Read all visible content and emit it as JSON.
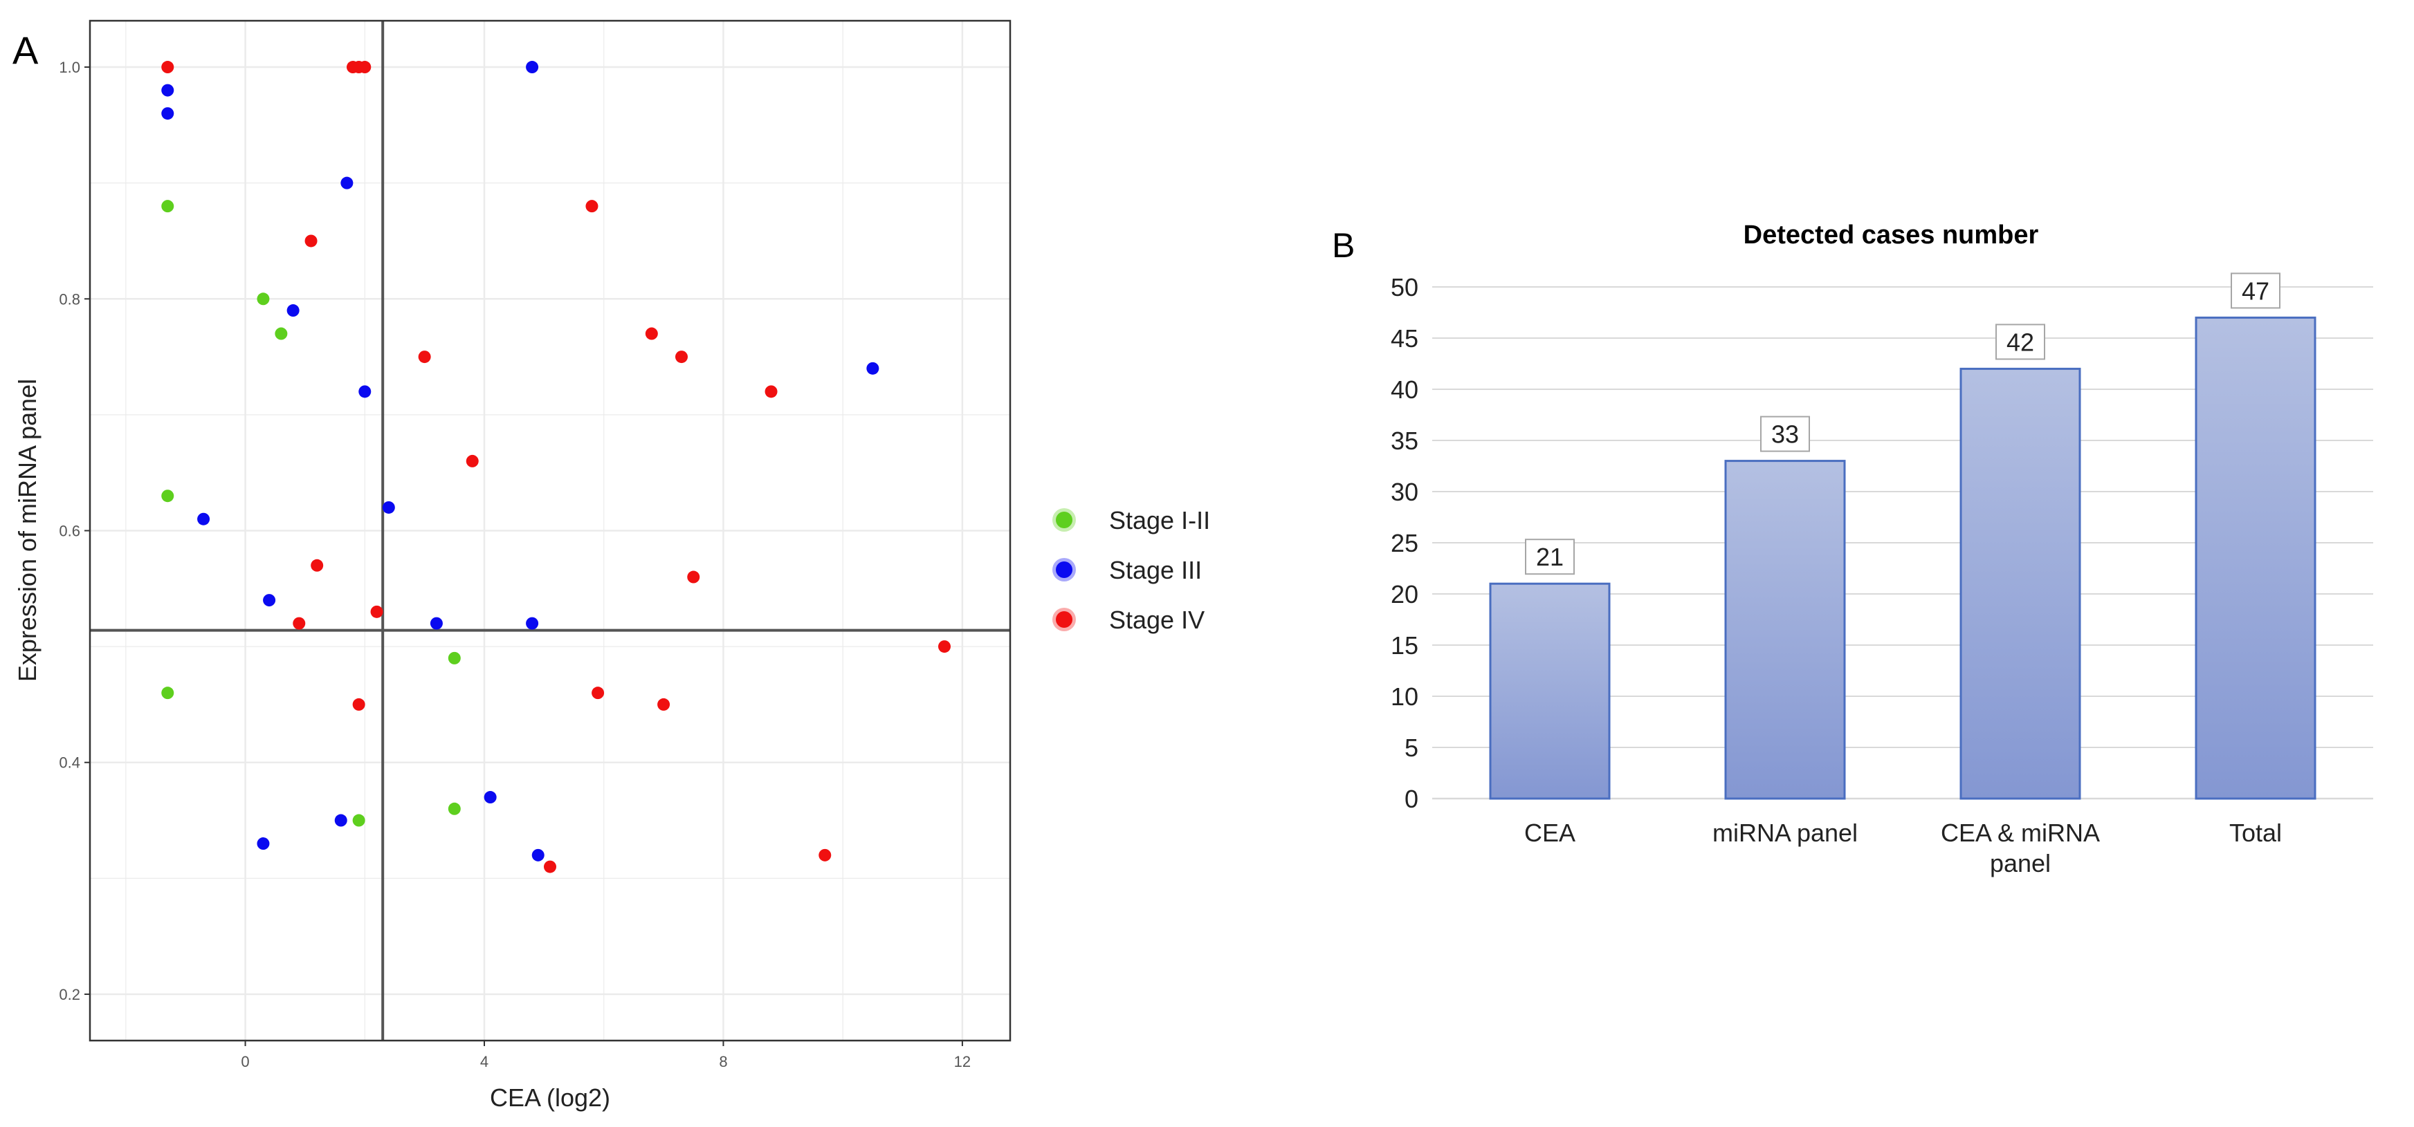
{
  "panels": {
    "a_label": "A",
    "b_label": "B"
  },
  "colors": {
    "stage_1_2": "#5ecf1e",
    "stage_3": "#0a0af0",
    "stage_4": "#f01010",
    "bar_top": "#b4c0e2",
    "bar_bottom": "#8497d2",
    "bar_border": "#4a6ec0",
    "grid": "#ebebeb",
    "bar_grid": "#d9d9d9"
  },
  "chart_data": [
    {
      "type": "scatter",
      "title": "",
      "xlabel": "CEA (log2)",
      "ylabel": "Expression of miRNA panel",
      "xlim": [
        -2.6,
        12.8
      ],
      "ylim": [
        0.16,
        1.04
      ],
      "xticks": [
        0,
        4,
        8,
        12
      ],
      "yticks": [
        0.2,
        0.4,
        0.6,
        0.8,
        1.0
      ],
      "ytick_labels": [
        "0.2",
        "0.4",
        "0.6",
        "0.8",
        "1.0"
      ],
      "grid": true,
      "cutoffs": {
        "x": 2.3,
        "y": 0.514
      },
      "legend_position": "right",
      "series": [
        {
          "name": "Stage I-II",
          "color_key": "stage_1_2",
          "points": [
            {
              "x": -1.3,
              "y": 0.88
            },
            {
              "x": 0.3,
              "y": 0.8
            },
            {
              "x": 0.6,
              "y": 0.77
            },
            {
              "x": -1.3,
              "y": 0.63
            },
            {
              "x": -1.3,
              "y": 0.46
            },
            {
              "x": 3.5,
              "y": 0.49
            },
            {
              "x": 3.5,
              "y": 0.36
            },
            {
              "x": 1.9,
              "y": 0.35
            }
          ]
        },
        {
          "name": "Stage III",
          "color_key": "stage_3",
          "points": [
            {
              "x": -1.3,
              "y": 0.98
            },
            {
              "x": -1.3,
              "y": 0.96
            },
            {
              "x": 1.7,
              "y": 0.9
            },
            {
              "x": 4.8,
              "y": 1.0
            },
            {
              "x": 0.8,
              "y": 0.79
            },
            {
              "x": 2.0,
              "y": 0.72
            },
            {
              "x": 10.5,
              "y": 0.74
            },
            {
              "x": -0.7,
              "y": 0.61
            },
            {
              "x": 2.4,
              "y": 0.62
            },
            {
              "x": 0.4,
              "y": 0.54
            },
            {
              "x": 3.2,
              "y": 0.52
            },
            {
              "x": 4.8,
              "y": 0.52
            },
            {
              "x": 4.1,
              "y": 0.37
            },
            {
              "x": 1.6,
              "y": 0.35
            },
            {
              "x": 0.3,
              "y": 0.33
            },
            {
              "x": 4.9,
              "y": 0.32
            }
          ]
        },
        {
          "name": "Stage IV",
          "color_key": "stage_4",
          "points": [
            {
              "x": -1.3,
              "y": 1.0
            },
            {
              "x": 1.8,
              "y": 1.0
            },
            {
              "x": 1.9,
              "y": 1.0
            },
            {
              "x": 2.0,
              "y": 1.0
            },
            {
              "x": 5.8,
              "y": 0.88
            },
            {
              "x": 1.1,
              "y": 0.85
            },
            {
              "x": 6.8,
              "y": 0.77
            },
            {
              "x": 7.3,
              "y": 0.75
            },
            {
              "x": 3.0,
              "y": 0.75
            },
            {
              "x": 8.8,
              "y": 0.72
            },
            {
              "x": 3.8,
              "y": 0.66
            },
            {
              "x": 1.2,
              "y": 0.57
            },
            {
              "x": 7.5,
              "y": 0.56
            },
            {
              "x": 2.2,
              "y": 0.53
            },
            {
              "x": 0.9,
              "y": 0.52
            },
            {
              "x": 11.7,
              "y": 0.5
            },
            {
              "x": 5.9,
              "y": 0.46
            },
            {
              "x": 7.0,
              "y": 0.45
            },
            {
              "x": 1.9,
              "y": 0.45
            },
            {
              "x": 9.7,
              "y": 0.32
            },
            {
              "x": 5.1,
              "y": 0.31
            }
          ]
        }
      ]
    },
    {
      "type": "bar",
      "title": "Detected cases number",
      "xlabel": "",
      "ylabel": "",
      "categories": [
        [
          "CEA"
        ],
        [
          "miRNA panel"
        ],
        [
          "CEA & miRNA",
          "panel"
        ],
        [
          "Total"
        ]
      ],
      "values": [
        21,
        33,
        42,
        47
      ],
      "data_labels": [
        "21",
        "33",
        "42",
        "47"
      ],
      "ylim": [
        0,
        50
      ],
      "yticks": [
        0,
        5,
        10,
        15,
        20,
        25,
        30,
        35,
        40,
        45,
        50
      ],
      "grid": true
    }
  ]
}
